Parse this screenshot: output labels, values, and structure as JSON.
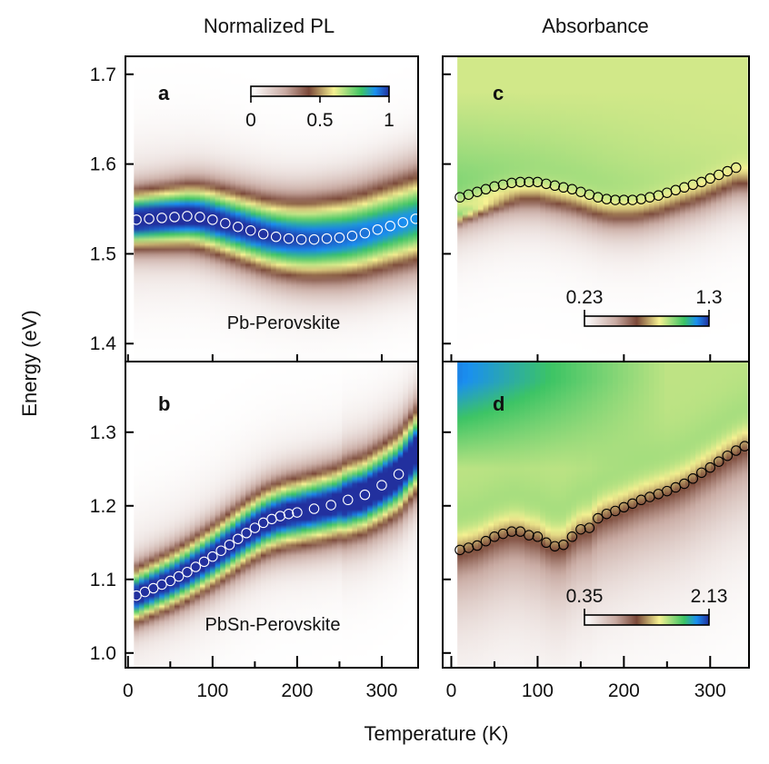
{
  "titles": {
    "left": "Normalized PL",
    "right": "Absorbance"
  },
  "xlabel": "Temperature (K)",
  "ylabel": "Energy (eV)",
  "colormap": [
    "#ffffff",
    "#c9aba3",
    "#7a4838",
    "#f6f192",
    "#3cc464",
    "#1a8ff0",
    "#22309e"
  ],
  "chart_data": [
    {
      "panel": "a",
      "type": "heatmap",
      "quantity": "Normalized PL",
      "sample_label": "Pb-Perovskite",
      "xlim": [
        -3,
        343
      ],
      "ylim": [
        1.38,
        1.72
      ],
      "xticks": [
        0,
        100,
        200,
        300
      ],
      "yticks": [
        1.4,
        1.5,
        1.6,
        1.7
      ],
      "colorbar": {
        "min": 0,
        "max": 1,
        "ticks": [
          "0",
          "0.5",
          "1"
        ]
      },
      "peak_marker_color": "#ffffff",
      "peak": [
        [
          10,
          1.538
        ],
        [
          25,
          1.539
        ],
        [
          40,
          1.54
        ],
        [
          55,
          1.541
        ],
        [
          70,
          1.542
        ],
        [
          85,
          1.541
        ],
        [
          100,
          1.538
        ],
        [
          115,
          1.534
        ],
        [
          130,
          1.53
        ],
        [
          145,
          1.526
        ],
        [
          160,
          1.522
        ],
        [
          175,
          1.519
        ],
        [
          190,
          1.517
        ],
        [
          205,
          1.516
        ],
        [
          220,
          1.516
        ],
        [
          235,
          1.517
        ],
        [
          250,
          1.518
        ],
        [
          265,
          1.52
        ],
        [
          280,
          1.523
        ],
        [
          295,
          1.527
        ],
        [
          310,
          1.531
        ],
        [
          325,
          1.535
        ],
        [
          340,
          1.539
        ]
      ]
    },
    {
      "panel": "b",
      "type": "heatmap",
      "quantity": "Normalized PL",
      "sample_label": "PbSn-Perovskite",
      "xlim": [
        -3,
        343
      ],
      "ylim": [
        0.98,
        1.396
      ],
      "xticks": [
        0,
        100,
        200,
        300
      ],
      "yticks": [
        1.0,
        1.1,
        1.2,
        1.3
      ],
      "peak_marker_color": "#ffffff",
      "peak": [
        [
          10,
          1.078
        ],
        [
          20,
          1.083
        ],
        [
          30,
          1.088
        ],
        [
          40,
          1.093
        ],
        [
          50,
          1.098
        ],
        [
          60,
          1.104
        ],
        [
          70,
          1.11
        ],
        [
          80,
          1.117
        ],
        [
          90,
          1.124
        ],
        [
          100,
          1.131
        ],
        [
          110,
          1.139
        ],
        [
          120,
          1.147
        ],
        [
          130,
          1.155
        ],
        [
          140,
          1.163
        ],
        [
          150,
          1.17
        ],
        [
          160,
          1.177
        ],
        [
          170,
          1.182
        ],
        [
          180,
          1.186
        ],
        [
          190,
          1.189
        ],
        [
          200,
          1.191
        ],
        [
          220,
          1.196
        ],
        [
          240,
          1.201
        ],
        [
          260,
          1.208
        ],
        [
          280,
          1.215
        ],
        [
          300,
          1.228
        ],
        [
          320,
          1.243
        ],
        [
          345,
          1.28
        ]
      ]
    },
    {
      "panel": "c",
      "type": "heatmap",
      "quantity": "Absorbance",
      "xlim": [
        -10,
        345
      ],
      "ylim": [
        1.38,
        1.72
      ],
      "xticks": [
        0,
        100,
        200,
        300
      ],
      "yticks": [
        1.4,
        1.5,
        1.6,
        1.7
      ],
      "colorbar": {
        "min": 0.23,
        "max": 1.3,
        "ticks": [
          "0.23",
          "1.3"
        ]
      },
      "peak_marker_color": "#000000",
      "peak": [
        [
          10,
          1.563
        ],
        [
          20,
          1.566
        ],
        [
          30,
          1.569
        ],
        [
          40,
          1.572
        ],
        [
          50,
          1.575
        ],
        [
          60,
          1.577
        ],
        [
          70,
          1.579
        ],
        [
          80,
          1.58
        ],
        [
          90,
          1.58
        ],
        [
          100,
          1.58
        ],
        [
          110,
          1.578
        ],
        [
          120,
          1.576
        ],
        [
          130,
          1.574
        ],
        [
          140,
          1.572
        ],
        [
          150,
          1.569
        ],
        [
          160,
          1.566
        ],
        [
          170,
          1.563
        ],
        [
          180,
          1.561
        ],
        [
          190,
          1.56
        ],
        [
          200,
          1.56
        ],
        [
          210,
          1.56
        ],
        [
          220,
          1.561
        ],
        [
          230,
          1.563
        ],
        [
          240,
          1.565
        ],
        [
          250,
          1.568
        ],
        [
          260,
          1.571
        ],
        [
          270,
          1.574
        ],
        [
          280,
          1.577
        ],
        [
          290,
          1.58
        ],
        [
          300,
          1.584
        ],
        [
          310,
          1.588
        ],
        [
          320,
          1.592
        ],
        [
          330,
          1.596
        ]
      ]
    },
    {
      "panel": "d",
      "type": "heatmap",
      "quantity": "Absorbance",
      "xlim": [
        -10,
        345
      ],
      "ylim": [
        0.98,
        1.396
      ],
      "xticks": [
        0,
        100,
        200,
        300
      ],
      "yticks": [
        1.0,
        1.1,
        1.2,
        1.3
      ],
      "colorbar": {
        "min": 0.35,
        "max": 2.13,
        "ticks": [
          "0.35",
          "2.13"
        ]
      },
      "peak_marker_color": "#000000",
      "peak": [
        [
          10,
          1.14
        ],
        [
          20,
          1.143
        ],
        [
          30,
          1.146
        ],
        [
          40,
          1.152
        ],
        [
          50,
          1.158
        ],
        [
          60,
          1.162
        ],
        [
          70,
          1.165
        ],
        [
          80,
          1.165
        ],
        [
          90,
          1.16
        ],
        [
          100,
          1.158
        ],
        [
          110,
          1.15
        ],
        [
          120,
          1.145
        ],
        [
          130,
          1.147
        ],
        [
          140,
          1.158
        ],
        [
          150,
          1.168
        ],
        [
          160,
          1.17
        ],
        [
          170,
          1.183
        ],
        [
          180,
          1.189
        ],
        [
          190,
          1.193
        ],
        [
          200,
          1.198
        ],
        [
          210,
          1.203
        ],
        [
          220,
          1.208
        ],
        [
          230,
          1.212
        ],
        [
          240,
          1.216
        ],
        [
          250,
          1.22
        ],
        [
          260,
          1.225
        ],
        [
          270,
          1.23
        ],
        [
          280,
          1.237
        ],
        [
          290,
          1.245
        ],
        [
          300,
          1.252
        ],
        [
          310,
          1.26
        ],
        [
          320,
          1.268
        ],
        [
          330,
          1.275
        ],
        [
          340,
          1.281
        ]
      ]
    }
  ]
}
